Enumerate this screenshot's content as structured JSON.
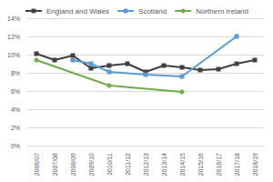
{
  "chart_data": {
    "type": "line",
    "categories": [
      "2006/07",
      "2007/08",
      "2008/09",
      "2009/10",
      "2010/11",
      "2011/12",
      "2012/13",
      "2013/14",
      "2014/15",
      "2015/16",
      "2016/17",
      "2017/18",
      "2018/19"
    ],
    "series": [
      {
        "name": "England and Wales",
        "color": "#404040",
        "marker": "square",
        "values": [
          10.1,
          9.4,
          9.9,
          8.5,
          8.8,
          9.0,
          8.1,
          8.8,
          8.6,
          8.3,
          8.4,
          9.0,
          9.4
        ]
      },
      {
        "name": "Scotland",
        "color": "#5b9bd5",
        "marker": "square",
        "values": [
          null,
          null,
          9.4,
          9.0,
          8.1,
          null,
          7.8,
          null,
          7.6,
          null,
          null,
          12.0,
          null
        ]
      },
      {
        "name": "Northern Ireland",
        "color": "#70ad47",
        "marker": "circle",
        "values": [
          9.4,
          null,
          null,
          null,
          6.6,
          null,
          null,
          null,
          5.9,
          null,
          null,
          null,
          null
        ]
      }
    ],
    "ylim": [
      0,
      14
    ],
    "yticks": [
      {
        "value": 0,
        "label": "0%"
      },
      {
        "value": 2,
        "label": "2%"
      },
      {
        "value": 4,
        "label": "4%"
      },
      {
        "value": 6,
        "label": "6%"
      },
      {
        "value": 8,
        "label": "8%"
      },
      {
        "value": 10,
        "label": "10%"
      },
      {
        "value": 12,
        "label": "12%"
      },
      {
        "value": 14,
        "label": "14%"
      }
    ],
    "grid": true,
    "legend": "top"
  }
}
